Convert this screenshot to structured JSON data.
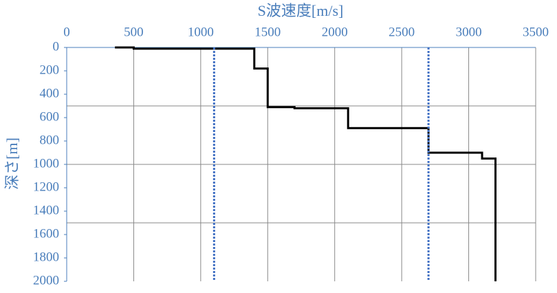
{
  "chart_data": {
    "type": "line",
    "x_label": "S波速度[m/s]",
    "y_label": "深さ[m]",
    "xlim": [
      0,
      3500
    ],
    "xticks": [
      0,
      500,
      1000,
      1500,
      2000,
      2500,
      3000,
      3500
    ],
    "ylim": [
      0,
      2000
    ],
    "y_inverted": true,
    "yticks": [
      0,
      200,
      400,
      600,
      800,
      1000,
      1200,
      1400,
      1600,
      1800,
      2000
    ],
    "xgrid": true,
    "ygrid": [
      500,
      1000,
      1500
    ],
    "series": [
      {
        "color": "#000000",
        "x": [
          360,
          500,
          500,
          1400,
          1400,
          1500,
          1500,
          1700,
          1700,
          2100,
          2100,
          2700,
          2700,
          3100,
          3100,
          3200,
          3200
        ],
        "values": [
          0,
          0,
          10,
          10,
          180,
          180,
          510,
          510,
          520,
          520,
          690,
          690,
          900,
          900,
          950,
          950,
          2000
        ]
      },
      {
        "color": "#4472c4",
        "dash": "dotted",
        "x": [
          1100,
          1100
        ],
        "values": [
          0,
          2000
        ]
      },
      {
        "color": "#4472c4",
        "dash": "dotted",
        "x": [
          2700,
          2700
        ],
        "values": [
          0,
          2000
        ]
      }
    ]
  }
}
